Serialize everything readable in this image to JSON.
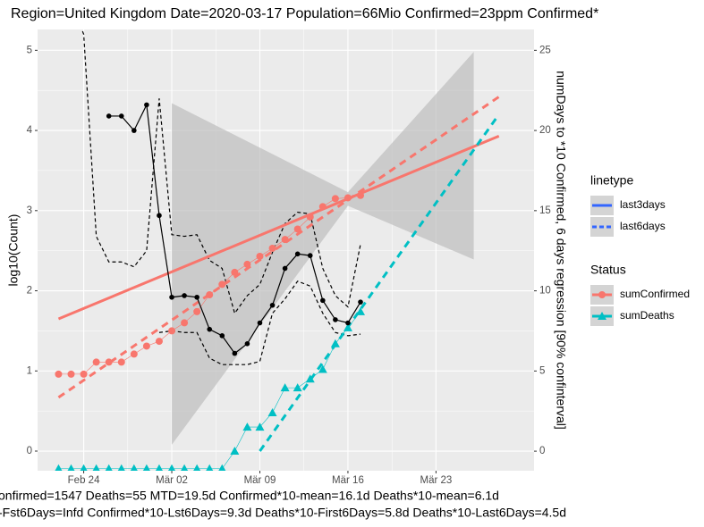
{
  "chart_data": {
    "type": "line",
    "title": "Region=United Kingdom Date=2020-03-17  Population=66Mio Confirmed=23ppm  Confirmed*",
    "caption": [
      "onfirmed=1547 Deaths=55  MTD=19.5d   Confirmed*10-mean=16.1d  Deaths*10-mean=6.1d",
      "-Fst6Days=Infd  Confirmed*10-Lst6Days=9.3d    Deaths*10-First6Days=5.8d  Deaths*10-Last6Days=4.5d"
    ],
    "y_label": "log10(Count)",
    "y2_label": "numDays to *10 Confirmed, 6 days regression [90% confinterval]",
    "xlim": [
      "2020-02-20T08:00",
      "2020-03-30T19:00"
    ],
    "xticks": [
      {
        "value": "2020-02-24",
        "label": "Feb 24"
      },
      {
        "value": "2020-03-02",
        "label": "Mär 02"
      },
      {
        "value": "2020-03-09",
        "label": "Mär 09"
      },
      {
        "value": "2020-03-16",
        "label": "Mär 16"
      },
      {
        "value": "2020-03-23",
        "label": "Mär 23"
      }
    ],
    "ylim": [
      -0.245,
      5.26
    ],
    "yticks": [
      0,
      1,
      2,
      3,
      4,
      5
    ],
    "y2lim": [
      -1.22,
      26.3
    ],
    "y2ticks": [
      0,
      5,
      10,
      15,
      20,
      25
    ],
    "grid": true,
    "x": [
      "2020-02-22",
      "2020-02-23",
      "2020-02-24",
      "2020-02-25",
      "2020-02-26",
      "2020-02-27",
      "2020-02-28",
      "2020-02-29",
      "2020-03-01",
      "2020-03-02",
      "2020-03-03",
      "2020-03-04",
      "2020-03-05",
      "2020-03-06",
      "2020-03-07",
      "2020-03-08",
      "2020-03-09",
      "2020-03-10",
      "2020-03-11",
      "2020-03-12",
      "2020-03-13",
      "2020-03-14",
      "2020-03-15",
      "2020-03-16",
      "2020-03-17"
    ],
    "series": [
      {
        "name": "sumConfirmed",
        "color": "#F8766D",
        "marker": "circle",
        "values": [
          0.96,
          0.96,
          0.96,
          1.11,
          1.11,
          1.11,
          1.21,
          1.31,
          1.37,
          1.5,
          1.6,
          1.74,
          1.95,
          2.08,
          2.23,
          2.33,
          2.43,
          2.53,
          2.64,
          2.77,
          2.92,
          3.05,
          3.15,
          3.16,
          3.19
        ]
      },
      {
        "name": "sumDeaths",
        "color": "#00BFC4",
        "marker": "triangle",
        "values": [
          -0.22,
          -0.22,
          -0.22,
          -0.22,
          -0.22,
          -0.22,
          -0.22,
          -0.22,
          -0.22,
          -0.22,
          -0.22,
          -0.22,
          -0.22,
          -0.22,
          0,
          0.3,
          0.3,
          0.48,
          0.79,
          0.79,
          0.9,
          1.02,
          1.34,
          1.54,
          1.74
        ]
      }
    ],
    "days": {
      "color": "#000000",
      "axis": "y2",
      "values": [
        null,
        null,
        null,
        null,
        20.9,
        20.9,
        20.0,
        21.6,
        14.7,
        9.6,
        9.7,
        9.6,
        7.6,
        7.2,
        6.1,
        6.7,
        8.0,
        9.1,
        11.4,
        12.3,
        12.2,
        9.4,
        8.2,
        8.0,
        9.3
      ],
      "upper": [
        28,
        28,
        26,
        13.4,
        11.8,
        11.8,
        11.5,
        12.5,
        22.0,
        13.5,
        13.4,
        13.5,
        11.9,
        11.4,
        8.6,
        9.7,
        10.4,
        12.4,
        14.2,
        14.9,
        14.8,
        11.4,
        9.7,
        9.0,
        12.9
      ],
      "lower": [
        null,
        null,
        null,
        null,
        null,
        null,
        null,
        null,
        7.4,
        7.5,
        7.4,
        7.4,
        5.8,
        5.4,
        5.4,
        5.4,
        5.6,
        8.6,
        9.5,
        10.6,
        10.3,
        8.6,
        7.4,
        7.2,
        7.3
      ]
    },
    "ribbon": {
      "color": "#bdbdbd",
      "x": [
        "2020-03-02",
        "2020-03-16",
        "2020-03-26"
      ],
      "upper": [
        4.34,
        3.23,
        4.98
      ],
      "lower": [
        0.08,
        3.06,
        2.39
      ]
    },
    "fits": [
      {
        "color": "#F8766D",
        "dashed": false,
        "x": [
          "2020-02-22",
          "2020-03-28"
        ],
        "values": [
          1.65,
          3.93
        ]
      },
      {
        "color": "#F8766D",
        "dashed": true,
        "x": [
          "2020-02-22",
          "2020-03-28"
        ],
        "values": [
          0.67,
          4.42
        ]
      },
      {
        "color": "#00BFC4",
        "dashed": true,
        "x": [
          "2020-03-09",
          "2020-03-28"
        ],
        "values": [
          0.0,
          4.2
        ]
      }
    ],
    "legend": {
      "linetype_title": "linetype",
      "linetypes": [
        "last3days",
        "last6days"
      ],
      "linetype_color": "#3366FF",
      "status_title": "Status"
    }
  }
}
